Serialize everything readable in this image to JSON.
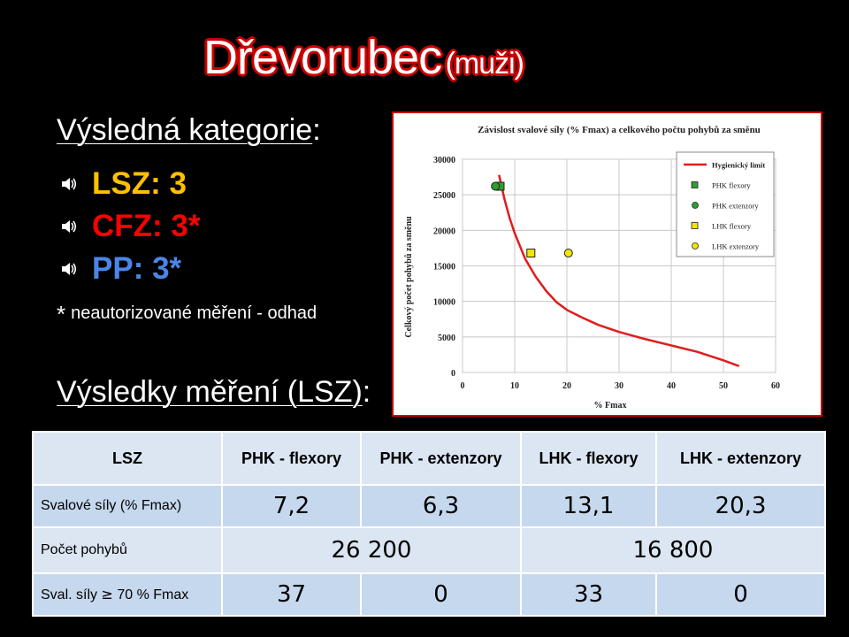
{
  "title": {
    "main": "Dřevorubec",
    "sub": "(muži)"
  },
  "result_heading": {
    "text": "Výsledná kategorie",
    "colon": ":"
  },
  "categories": [
    {
      "label": "LSZ: 3",
      "color": "#ffc000"
    },
    {
      "label": "CFZ: 3*",
      "color": "#ff0000"
    },
    {
      "label": "PP: 3*",
      "color": "#4a86e8"
    }
  ],
  "note": {
    "star": "*",
    "text": "neautorizované měření - odhad"
  },
  "measurement_heading": {
    "text": "Výsledky měření (LSZ)",
    "colon": ":"
  },
  "chart_data": {
    "type": "scatter",
    "title": "Závislost svalové síly (% Fmax) a celkového počtu pohybů za směnu",
    "xlabel": "% Fmax",
    "ylabel": "Celkový počet pohybů za směnu",
    "xlim": [
      0,
      60
    ],
    "ylim": [
      0,
      30000
    ],
    "xticks": [
      "0",
      "10",
      "20",
      "30",
      "40",
      "50",
      "60"
    ],
    "yticks": [
      "0",
      "5000",
      "10000",
      "15000",
      "20000",
      "25000",
      "30000"
    ],
    "legend_position": "top-right",
    "series": [
      {
        "name": "Hygienický limit",
        "kind": "line",
        "color": "#e01c1c",
        "x": [
          7,
          8,
          9,
          10,
          12,
          14,
          16,
          18,
          20,
          23,
          26,
          30,
          35,
          40,
          45,
          50,
          53
        ],
        "y": [
          27800,
          24500,
          21800,
          19600,
          16000,
          13500,
          11500,
          9900,
          8800,
          7700,
          6700,
          5700,
          4700,
          3800,
          2900,
          1700,
          900
        ]
      },
      {
        "name": "PHK flexory",
        "kind": "square",
        "color": "#2e9e2e",
        "x": [
          7.2
        ],
        "y": [
          26200
        ]
      },
      {
        "name": "PHK extenzory",
        "kind": "circle",
        "color": "#2e9e2e",
        "x": [
          6.3
        ],
        "y": [
          26200
        ]
      },
      {
        "name": "LHK flexory",
        "kind": "square",
        "color": "#f2e600",
        "x": [
          13.1
        ],
        "y": [
          16800
        ]
      },
      {
        "name": "LHK extenzory",
        "kind": "circle",
        "color": "#f2e600",
        "x": [
          20.3
        ],
        "y": [
          16800
        ]
      }
    ]
  },
  "table": {
    "headers": [
      "LSZ",
      "PHK - flexory",
      "PHK - extenzory",
      "LHK - flexory",
      "LHK - extenzory"
    ],
    "row1": {
      "label": "Svalové síly (% Fmax)",
      "values": [
        "7,2",
        "6,3",
        "13,1",
        "20,3"
      ]
    },
    "row2": {
      "label": "Počet pohybů",
      "values": [
        "26 200",
        "16 800"
      ]
    },
    "row3": {
      "label_start": "Sval. síly",
      "label_symbol": "≥",
      "label_end": "70 % Fmax",
      "values": [
        "37",
        "0",
        "33",
        "0"
      ]
    }
  }
}
